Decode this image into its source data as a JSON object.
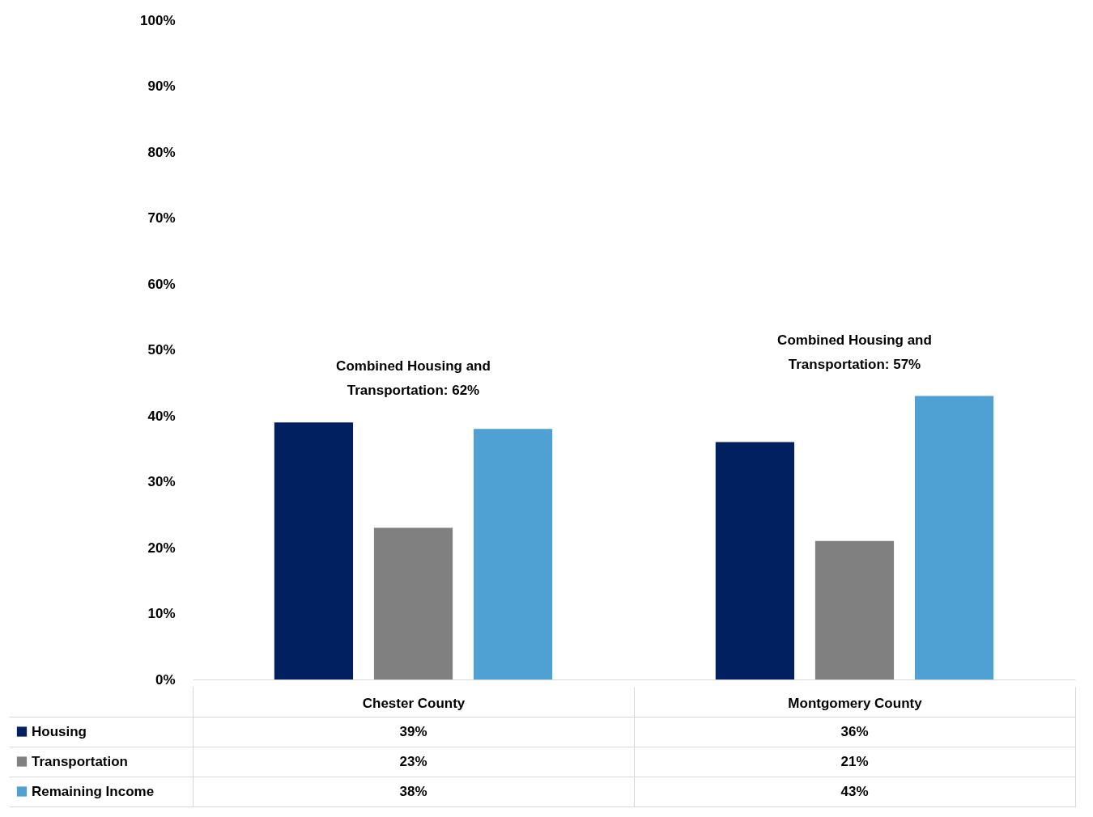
{
  "chart_data": {
    "type": "bar",
    "categories": [
      "Chester County",
      "Montgomery County"
    ],
    "series": [
      {
        "name": "Housing",
        "color": "#002060",
        "values": [
          39,
          36
        ],
        "value_labels": [
          "39%",
          "36%"
        ]
      },
      {
        "name": "Transportation",
        "color": "#808080",
        "values": [
          23,
          21
        ],
        "value_labels": [
          "23%",
          "21%"
        ]
      },
      {
        "name": "Remaining Income",
        "color": "#4fa1d3",
        "values": [
          38,
          43
        ],
        "value_labels": [
          "38%",
          "43%"
        ]
      }
    ],
    "ylim": [
      0,
      100
    ],
    "yticks": [
      {
        "value": 0,
        "label": "0%"
      },
      {
        "value": 10,
        "label": "10%"
      },
      {
        "value": 20,
        "label": "20%"
      },
      {
        "value": 30,
        "label": "30%"
      },
      {
        "value": 40,
        "label": "40%"
      },
      {
        "value": 50,
        "label": "50%"
      },
      {
        "value": 60,
        "label": "60%"
      },
      {
        "value": 70,
        "label": "70%"
      },
      {
        "value": 80,
        "label": "80%"
      },
      {
        "value": 90,
        "label": "90%"
      },
      {
        "value": 100,
        "label": "100%"
      }
    ],
    "annotations": [
      "Combined Housing and Transportation: 62%",
      "Combined Housing and Transportation: 57%"
    ],
    "legend": "bottom left"
  }
}
